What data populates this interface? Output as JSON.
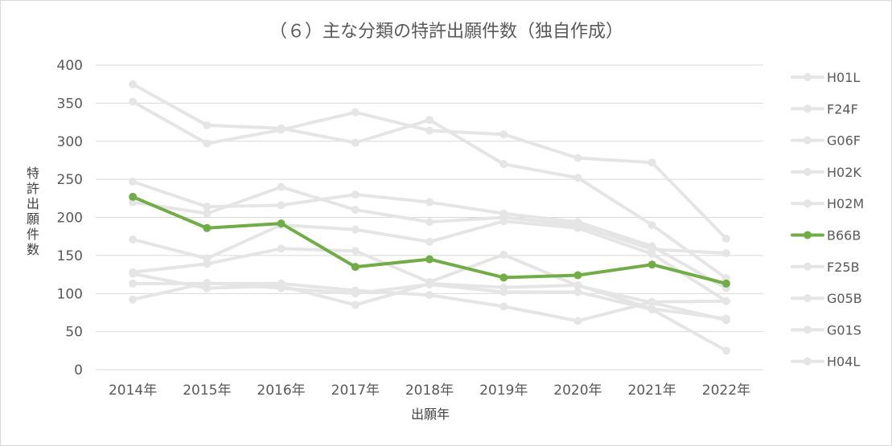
{
  "chart_data": {
    "type": "line",
    "title": "（６）主な分類の特許出願件数（独自作成）",
    "xlabel": "出願年",
    "ylabel": "特許出願件数",
    "ylim": [
      0,
      400
    ],
    "yticks": [
      "0",
      "50",
      "100",
      "150",
      "200",
      "250",
      "300",
      "350",
      "400"
    ],
    "categories": [
      "2014年",
      "2015年",
      "2016年",
      "2017年",
      "2018年",
      "2019年",
      "2020年",
      "2021年",
      "2022年"
    ],
    "grid": true,
    "legend_position": "right",
    "highlight_color": "#70ad47",
    "muted_color": "#e5e5e5",
    "series": [
      {
        "name": "H01L",
        "values": [
          375,
          321,
          317,
          298,
          328,
          270,
          252,
          190,
          120
        ],
        "highlight": false
      },
      {
        "name": "F24F",
        "values": [
          352,
          297,
          315,
          338,
          314,
          309,
          278,
          272,
          172
        ],
        "highlight": false
      },
      {
        "name": "G06F",
        "values": [
          247,
          214,
          216,
          230,
          220,
          205,
          194,
          162,
          107
        ],
        "highlight": false
      },
      {
        "name": "H02K",
        "values": [
          220,
          205,
          240,
          210,
          194,
          200,
          190,
          158,
          153
        ],
        "highlight": false
      },
      {
        "name": "H02M",
        "values": [
          171,
          146,
          190,
          184,
          168,
          195,
          186,
          152,
          90
        ],
        "highlight": false
      },
      {
        "name": "B66B",
        "values": [
          227,
          186,
          192,
          135,
          145,
          121,
          124,
          138,
          113
        ],
        "highlight": true
      },
      {
        "name": "F25B",
        "values": [
          128,
          139,
          159,
          156,
          115,
          151,
          110,
          88,
          65
        ],
        "highlight": false
      },
      {
        "name": "G05B",
        "values": [
          126,
          107,
          110,
          85,
          113,
          108,
          111,
          80,
          67
        ],
        "highlight": false
      },
      {
        "name": "G01S",
        "values": [
          113,
          113,
          113,
          104,
          98,
          83,
          64,
          89,
          90
        ],
        "highlight": false
      },
      {
        "name": "H04L",
        "values": [
          92,
          114,
          107,
          100,
          112,
          102,
          102,
          79,
          25
        ],
        "highlight": false
      }
    ]
  }
}
